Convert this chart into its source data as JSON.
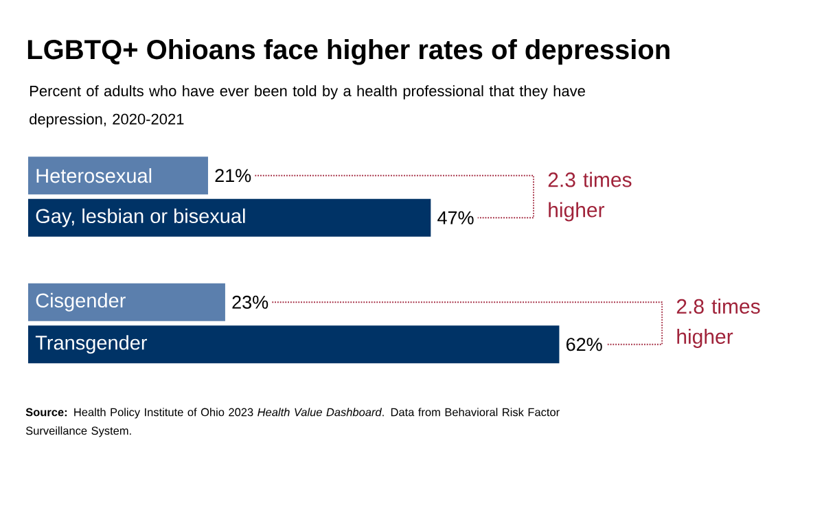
{
  "chart_data": {
    "type": "bar",
    "orientation": "horizontal",
    "title": "LGBTQ+ Ohioans face higher rates of depression",
    "subtitle": "Percent of adults who have ever been told by a health professional that they have depression, 2020-2021",
    "categories": [
      "Heterosexual",
      "Gay, lesbian or bisexual",
      null,
      "Cisgender",
      "Transgender"
    ],
    "values": [
      21,
      47,
      null,
      23,
      62
    ],
    "colors": [
      "#5b7fad",
      "#003366",
      null,
      "#5b7fad",
      "#003366"
    ],
    "value_labels": [
      "21%",
      "47%",
      null,
      "23%",
      "62%"
    ],
    "annotations": [
      "2.3 times higher",
      "2.8 times higher",
      "**Source:** Health Policy Institute of Ohio 2023 *Health Value Dashboard*. Data from Behavioral Risk Factor Surveillance System."
    ]
  }
}
